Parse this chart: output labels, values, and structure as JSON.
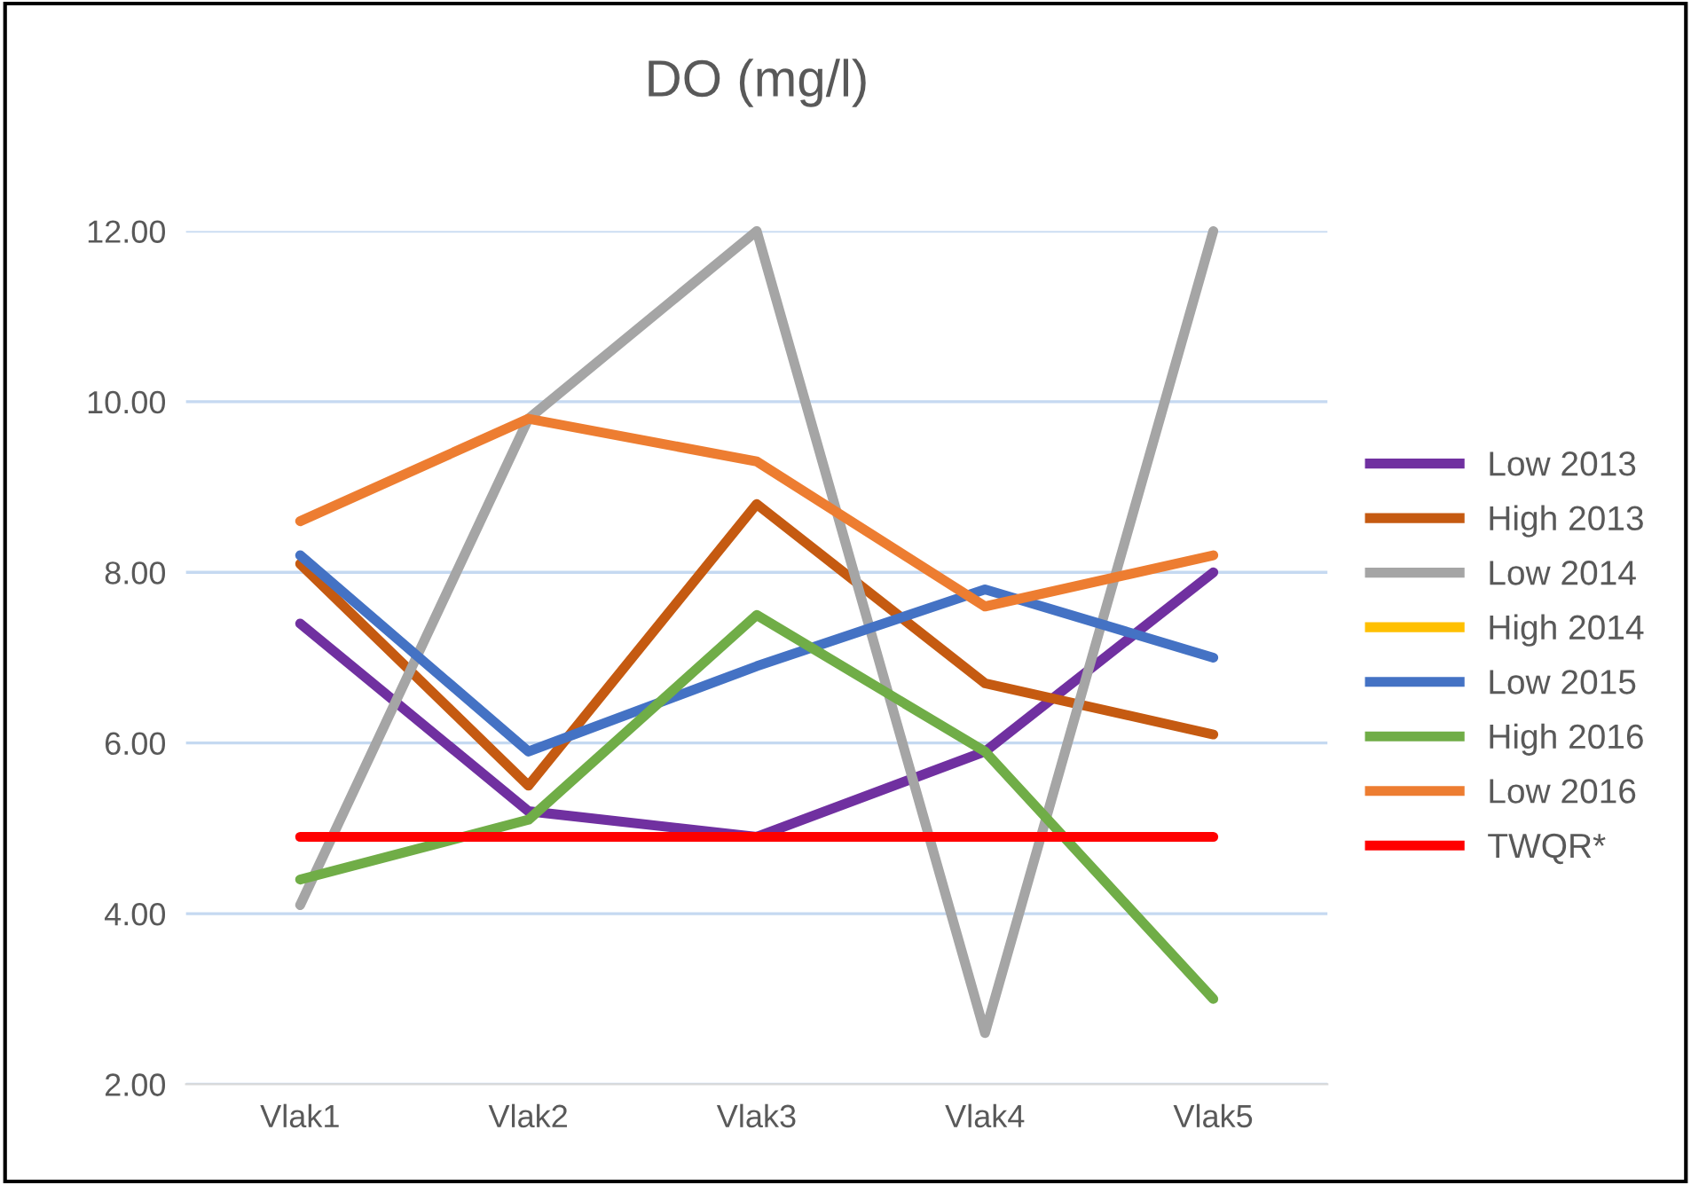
{
  "chart_data": {
    "type": "line",
    "title": "DO (mg/l)",
    "categories": [
      "Vlak1",
      "Vlak2",
      "Vlak3",
      "Vlak4",
      "Vlak5"
    ],
    "series": [
      {
        "name": "Low 2013",
        "color": "#7030a0",
        "values": [
          7.4,
          5.2,
          4.9,
          5.9,
          8.0
        ]
      },
      {
        "name": "High 2013",
        "color": "#c55a11",
        "values": [
          8.1,
          5.5,
          8.8,
          6.7,
          6.1
        ]
      },
      {
        "name": "Low 2014",
        "color": "#a5a5a5",
        "values": [
          4.1,
          9.8,
          12.0,
          2.6,
          12.0
        ]
      },
      {
        "name": "High 2014",
        "color": "#ffc000",
        "values": [
          null,
          null,
          null,
          null,
          null
        ]
      },
      {
        "name": "Low 2015",
        "color": "#4472c4",
        "values": [
          8.2,
          5.9,
          6.9,
          7.8,
          7.0
        ]
      },
      {
        "name": "High 2016",
        "color": "#70ad47",
        "values": [
          4.4,
          5.1,
          7.5,
          5.9,
          3.0
        ]
      },
      {
        "name": "Low 2016",
        "color": "#ed7d31",
        "values": [
          8.6,
          9.8,
          9.3,
          7.6,
          8.2
        ]
      },
      {
        "name": "TWQR*",
        "color": "#ff0000",
        "values": [
          4.9,
          4.9,
          4.9,
          4.9,
          4.9
        ]
      }
    ],
    "ylim": [
      2,
      12
    ],
    "yticks": [
      {
        "value": 2,
        "label": "2.00"
      },
      {
        "value": 4,
        "label": "4.00"
      },
      {
        "value": 6,
        "label": "6.00"
      },
      {
        "value": 8,
        "label": "8.00"
      },
      {
        "value": 10,
        "label": "10.00"
      },
      {
        "value": 12,
        "label": "12.00"
      }
    ],
    "grid": "y",
    "legend": "right",
    "marker": "none",
    "line_style": "solid"
  }
}
